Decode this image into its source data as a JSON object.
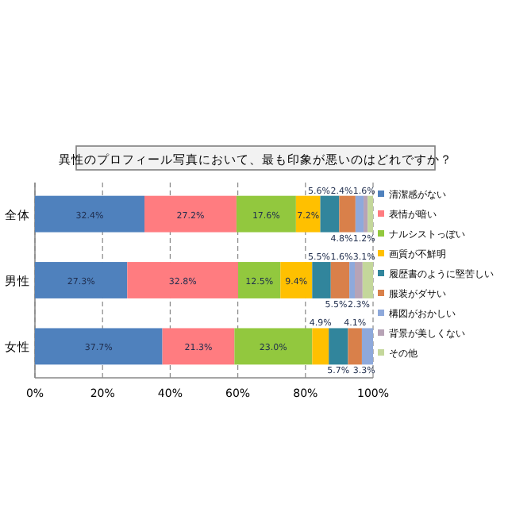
{
  "chart_data": {
    "type": "bar",
    "orientation": "horizontal",
    "stacked": true,
    "title": "異性のプロフィール写真において、最も印象が悪いのはどれですか？",
    "categories": [
      "全体",
      "男性",
      "女性"
    ],
    "series": [
      {
        "name": "清潔感がない",
        "color": "#4f81bd",
        "values": [
          32.4,
          27.3,
          37.7
        ],
        "value_labels": [
          "32.4%",
          "27.3%",
          "37.7%"
        ]
      },
      {
        "name": "表情が暗い",
        "color": "#ff7c80",
        "values": [
          27.2,
          32.8,
          21.3
        ],
        "value_labels": [
          "27.2%",
          "32.8%",
          "21.3%"
        ]
      },
      {
        "name": "ナルシストっぽい",
        "color": "#92c83e",
        "values": [
          17.6,
          12.5,
          23.0
        ],
        "value_labels": [
          "17.6%",
          "12.5%",
          "23.0%"
        ]
      },
      {
        "name": "画質が不鮮明",
        "color": "#ffc000",
        "values": [
          7.2,
          9.4,
          4.9
        ],
        "value_labels": [
          "7.2%",
          "9.4%",
          "4.9%"
        ]
      },
      {
        "name": "履歴書のように堅苦しい",
        "color": "#31859c",
        "values": [
          5.6,
          5.5,
          5.7
        ],
        "value_labels": [
          "5.6%",
          "5.5%",
          "5.7%"
        ]
      },
      {
        "name": "服装がダサい",
        "color": "#d9804a",
        "values": [
          4.8,
          5.5,
          4.1
        ],
        "value_labels": [
          "4.8%",
          "5.5%",
          "4.1%"
        ]
      },
      {
        "name": "構図がおかしい",
        "color": "#8ea9db",
        "values": [
          2.4,
          1.6,
          3.3
        ],
        "value_labels": [
          "2.4%",
          "1.6%",
          "3.3%"
        ]
      },
      {
        "name": "背景が美しくない",
        "color": "#b7a3b6",
        "values": [
          1.2,
          2.3,
          0
        ],
        "value_labels": [
          "1.2%",
          "2.3%",
          null
        ]
      },
      {
        "name": "その他",
        "color": "#c4d79b",
        "values": [
          1.6,
          3.1,
          0
        ],
        "value_labels": [
          "1.6%",
          "3.1%",
          null
        ]
      }
    ],
    "xlim": [
      0,
      100
    ],
    "xticks": [
      {
        "value": 0,
        "label": "0%"
      },
      {
        "value": 20,
        "label": "20%"
      },
      {
        "value": 40,
        "label": "40%"
      },
      {
        "value": 60,
        "label": "60%"
      },
      {
        "value": 80,
        "label": "80%"
      },
      {
        "value": 100,
        "label": "100%"
      }
    ],
    "grid": "x",
    "legend": "right"
  }
}
